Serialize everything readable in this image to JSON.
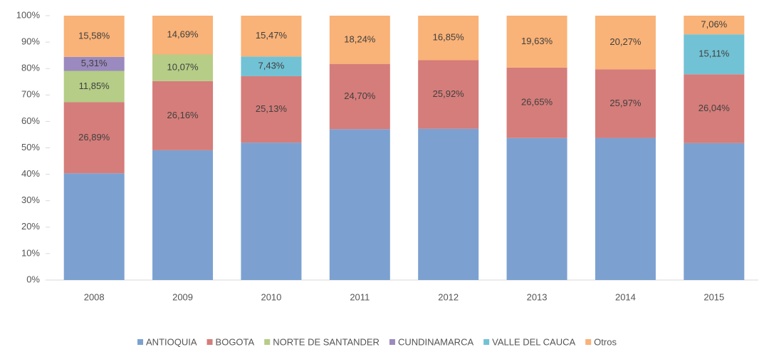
{
  "chart_data": {
    "type": "stacked_bar",
    "categories": [
      "2008",
      "2009",
      "2010",
      "2011",
      "2012",
      "2013",
      "2014",
      "2015"
    ],
    "series": [
      {
        "name": "ANTIOQUIA",
        "color": "#7ca1d0",
        "values": [
          40.37,
          49.08,
          51.97,
          57.06,
          57.23,
          53.72,
          53.76,
          51.79
        ]
      },
      {
        "name": "BOGOTA",
        "color": "#d57d7a",
        "values": [
          26.89,
          26.16,
          25.13,
          24.7,
          25.92,
          26.65,
          25.97,
          26.04
        ],
        "value_labels": [
          "26,89%",
          "26,16%",
          "25,13%",
          "24,70%",
          "25,92%",
          "26,65%",
          "25,97%",
          "26,04%"
        ]
      },
      {
        "name": "NORTE DE SANTANDER",
        "color": "#b5cd86",
        "values": [
          11.85,
          10.07,
          null,
          null,
          null,
          null,
          null,
          null
        ],
        "value_labels": [
          "11,85%",
          "10,07%",
          null,
          null,
          null,
          null,
          null,
          null
        ]
      },
      {
        "name": "CUNDINAMARCA",
        "color": "#9b8abf",
        "values": [
          5.31,
          null,
          null,
          null,
          null,
          null,
          null,
          null
        ],
        "value_labels": [
          "5,31%",
          null,
          null,
          null,
          null,
          null,
          null,
          null
        ]
      },
      {
        "name": "VALLE DEL CAUCA",
        "color": "#72c2d5",
        "values": [
          null,
          null,
          7.43,
          null,
          null,
          null,
          null,
          15.11
        ],
        "value_labels": [
          null,
          null,
          "7,43%",
          null,
          null,
          null,
          null,
          "15,11%"
        ]
      },
      {
        "name": "Otros",
        "color": "#f9b277",
        "values": [
          15.58,
          14.69,
          15.47,
          18.24,
          16.85,
          19.63,
          20.27,
          7.06
        ],
        "value_labels": [
          "15,58%",
          "14,69%",
          "15,47%",
          "18,24%",
          "16,85%",
          "19,63%",
          "20,27%",
          "7,06%"
        ]
      }
    ],
    "ylim": [
      0,
      100
    ],
    "yticks": [
      {
        "value": 0,
        "label": "0%"
      },
      {
        "value": 10,
        "label": "10%"
      },
      {
        "value": 20,
        "label": "20%"
      },
      {
        "value": 30,
        "label": "30%"
      },
      {
        "value": 40,
        "label": "40%"
      },
      {
        "value": 50,
        "label": "50%"
      },
      {
        "value": 60,
        "label": "60%"
      },
      {
        "value": 70,
        "label": "70%"
      },
      {
        "value": 80,
        "label": "80%"
      },
      {
        "value": 90,
        "label": "90%"
      },
      {
        "value": 100,
        "label": "100%"
      }
    ],
    "grid": false,
    "legend": "bottom"
  }
}
